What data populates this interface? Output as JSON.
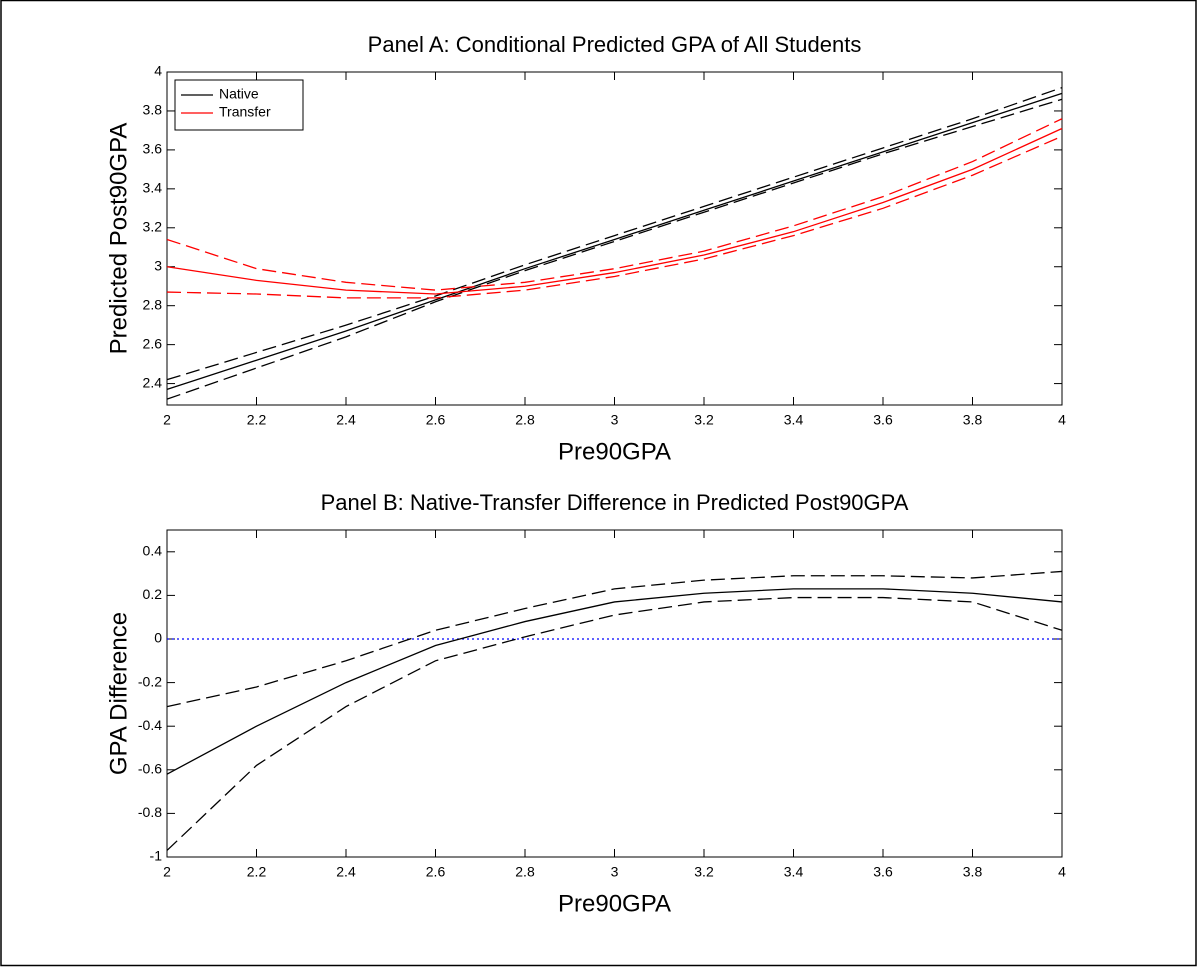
{
  "chart_data": [
    {
      "type": "line",
      "title": "Panel A: Conditional Predicted GPA of All Students",
      "xlabel": "Pre90GPA",
      "ylabel": "Predicted Post90GPA",
      "x": [
        2,
        2.2,
        2.4,
        2.6,
        2.8,
        3,
        3.2,
        3.4,
        3.6,
        3.8,
        4
      ],
      "series": [
        {
          "name": "Native",
          "color": "#000000",
          "values": [
            2.37,
            2.52,
            2.67,
            2.83,
            2.99,
            3.14,
            3.29,
            3.44,
            3.59,
            3.74,
            3.89
          ],
          "lower": [
            2.32,
            2.48,
            2.64,
            2.82,
            2.98,
            3.13,
            3.28,
            3.43,
            3.58,
            3.72,
            3.86
          ],
          "upper": [
            2.42,
            2.56,
            2.7,
            2.85,
            3.01,
            3.16,
            3.31,
            3.46,
            3.61,
            3.76,
            3.92
          ]
        },
        {
          "name": "Transfer",
          "color": "#ff0000",
          "values": [
            3.0,
            2.93,
            2.88,
            2.86,
            2.9,
            2.97,
            3.06,
            3.18,
            3.33,
            3.5,
            3.71
          ],
          "lower": [
            2.87,
            2.86,
            2.84,
            2.84,
            2.88,
            2.95,
            3.04,
            3.16,
            3.3,
            3.47,
            3.67
          ],
          "upper": [
            3.14,
            2.99,
            2.92,
            2.88,
            2.92,
            2.99,
            3.08,
            3.21,
            3.36,
            3.54,
            3.76
          ]
        }
      ],
      "xlim": [
        2,
        4
      ],
      "xticks": [
        2,
        2.2,
        2.4,
        2.6,
        2.8,
        3,
        3.2,
        3.4,
        3.6,
        3.8,
        4
      ],
      "ylim": [
        2.29,
        4
      ],
      "yticks": [
        2.4,
        2.6,
        2.8,
        3,
        3.2,
        3.4,
        3.6,
        3.8,
        4
      ],
      "legend": "upper left"
    },
    {
      "type": "line",
      "title": "Panel B: Native-Transfer Difference in Predicted Post90GPA",
      "xlabel": "Pre90GPA",
      "ylabel": "GPA Difference",
      "x": [
        2,
        2.2,
        2.4,
        2.6,
        2.8,
        3,
        3.2,
        3.4,
        3.6,
        3.8,
        4
      ],
      "color": "#000000",
      "values": [
        -0.62,
        -0.4,
        -0.2,
        -0.03,
        0.08,
        0.17,
        0.21,
        0.23,
        0.23,
        0.21,
        0.17
      ],
      "lower": [
        -0.97,
        -0.58,
        -0.31,
        -0.1,
        0.01,
        0.11,
        0.17,
        0.19,
        0.19,
        0.17,
        0.04
      ],
      "upper": [
        -0.31,
        -0.22,
        -0.1,
        0.04,
        0.14,
        0.23,
        0.27,
        0.29,
        0.29,
        0.28,
        0.31
      ],
      "reference_line": {
        "value": 0,
        "color": "#0000ff"
      },
      "xlim": [
        2,
        4
      ],
      "xticks": [
        2,
        2.2,
        2.4,
        2.6,
        2.8,
        3,
        3.2,
        3.4,
        3.6,
        3.8,
        4
      ],
      "ylim": [
        -1,
        0.5
      ],
      "yticks": [
        -1,
        -0.8,
        -0.6,
        -0.4,
        -0.2,
        0,
        0.2,
        0.4
      ]
    }
  ]
}
